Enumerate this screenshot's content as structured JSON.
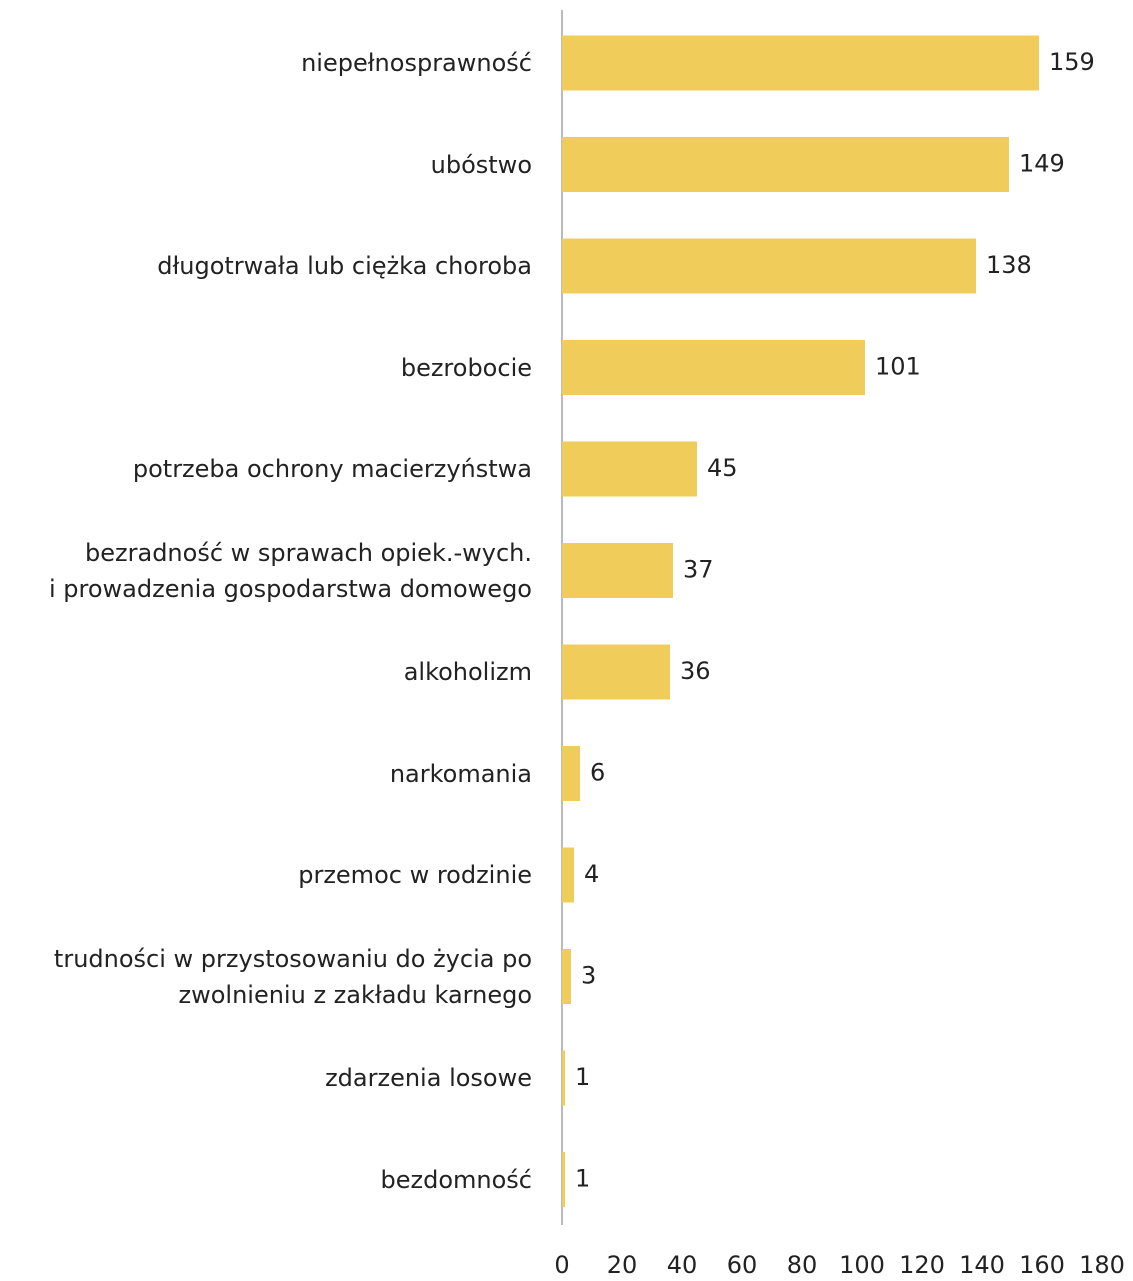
{
  "chart_data": {
    "type": "bar",
    "orientation": "horizontal",
    "categories": [
      "niepełnosprawność",
      "ubóstwo",
      "długotrwała lub ciężka choroba",
      "bezrobocie",
      "potrzeba ochrony macierzyństwa",
      "bezradność w sprawach opiek.-wych.\ni prowadzenia gospodarstwa domowego",
      "alkoholizm",
      "narkomania",
      "przemoc w rodzinie",
      "trudności w przystosowaniu do życia po\nzwolnieniu z zakładu karnego",
      "zdarzenia losowe",
      "bezdomność"
    ],
    "values": [
      159,
      149,
      138,
      101,
      45,
      37,
      36,
      6,
      4,
      3,
      1,
      1
    ],
    "color": "#f0cc5a",
    "xlim": [
      0,
      180
    ],
    "xticks": [
      0,
      20,
      40,
      60,
      80,
      100,
      120,
      140,
      160,
      180
    ],
    "grid": false
  }
}
